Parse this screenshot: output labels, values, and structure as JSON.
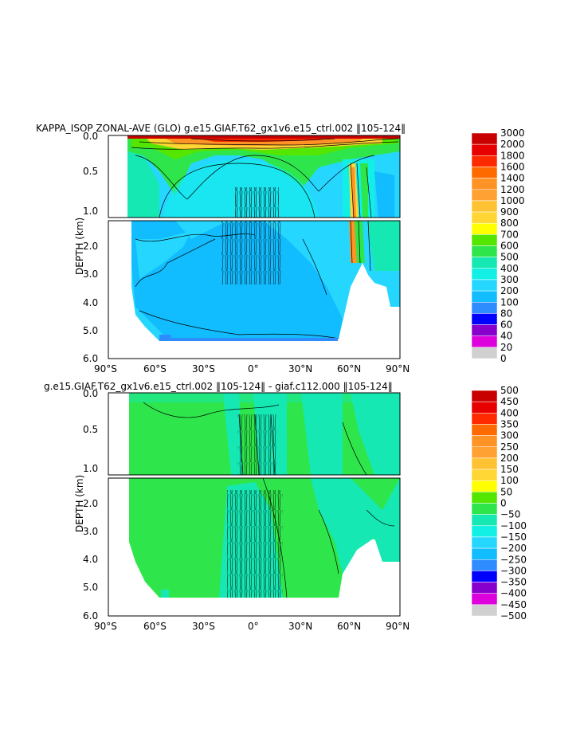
{
  "chart_data": [
    {
      "type": "heatmap",
      "title": "KAPPA_ISOP  ZONAL-AVE (GLO) g.e15.GIAF.T62_gx1v6.e15_ctrl.002  ‖105-124‖",
      "ylabel": "DEPTH (km)",
      "x_ticks": [
        "90°S",
        "60°S",
        "30°S",
        "0°",
        "30°N",
        "60°N",
        "90°N"
      ],
      "y_ticks": [
        "0.0",
        "0.5",
        "1.0",
        "2.0",
        "3.0",
        "4.0",
        "5.0",
        "6.0"
      ],
      "xlim": [
        -90,
        90
      ],
      "ylim_km": [
        0,
        6
      ],
      "colorbar": {
        "labels": [
          "3000",
          "2000",
          "1800",
          "1600",
          "1400",
          "1200",
          "1000",
          "900",
          "800",
          "700",
          "600",
          "500",
          "400",
          "300",
          "200",
          "100",
          "80",
          "60",
          "40",
          "20",
          "0"
        ],
        "colors": [
          "#c80000",
          "#e60000",
          "#ff2a00",
          "#ff6a00",
          "#ff9326",
          "#ffa233",
          "#ffc233",
          "#ffd633",
          "#ffff00",
          "#55e600",
          "#2ee64b",
          "#16e8b4",
          "#12f0e6",
          "#25d6ff",
          "#11bcff",
          "#2e8cff",
          "#0000ff",
          "#8800cc",
          "#dd00dd",
          "#d0d0d0",
          "#707070"
        ]
      }
    },
    {
      "type": "heatmap",
      "title": "g.e15.GIAF.T62_gx1v6.e15_ctrl.002  ‖105-124‖  -  giaf.c112.000  ‖105-124‖",
      "ylabel": "DEPTH (km)",
      "x_ticks": [
        "90°S",
        "60°S",
        "30°S",
        "0°",
        "30°N",
        "60°N",
        "90°N"
      ],
      "y_ticks": [
        "0.0",
        "0.5",
        "1.0",
        "2.0",
        "3.0",
        "4.0",
        "5.0",
        "6.0"
      ],
      "xlim": [
        -90,
        90
      ],
      "ylim_km": [
        0,
        6
      ],
      "colorbar": {
        "labels": [
          "500",
          "450",
          "400",
          "350",
          "300",
          "250",
          "200",
          "150",
          "100",
          "50",
          "0",
          "−50",
          "−100",
          "−150",
          "−200",
          "−250",
          "−300",
          "−350",
          "−400",
          "−450",
          "−500"
        ],
        "colors": [
          "#c80000",
          "#e60000",
          "#ff2a00",
          "#ff6a00",
          "#ff9326",
          "#ffa233",
          "#ffc233",
          "#ffd633",
          "#ffff00",
          "#55e600",
          "#2ee64b",
          "#16e8b4",
          "#12f0e6",
          "#25d6ff",
          "#11bcff",
          "#2e8cff",
          "#0000ff",
          "#8800cc",
          "#dd00dd",
          "#d0d0d0",
          "#707070"
        ]
      }
    }
  ]
}
